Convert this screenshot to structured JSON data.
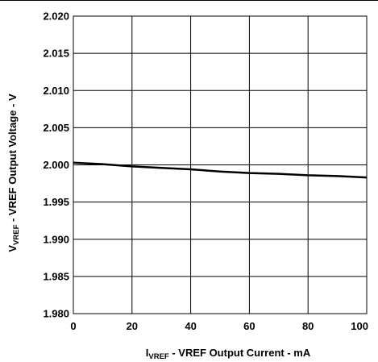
{
  "chart_data": {
    "type": "line",
    "xlabel": {
      "prefix": "I",
      "subscript": "VREF",
      "rest": " - VREF Output Current - mA"
    },
    "ylabel": {
      "prefix": "V",
      "subscript": "VREF",
      "rest": " - VREF Output Voltage - V"
    },
    "xlim": [
      0,
      100
    ],
    "ylim": [
      1.98,
      2.02
    ],
    "xticks": [
      0,
      20,
      40,
      60,
      80,
      100
    ],
    "xtick_labels": [
      "0",
      "20",
      "40",
      "60",
      "80",
      "100"
    ],
    "yticks": [
      1.98,
      1.985,
      1.99,
      1.995,
      2.0,
      2.005,
      2.01,
      2.015,
      2.02
    ],
    "ytick_labels": [
      "1.980",
      "1.985",
      "1.990",
      "1.995",
      "2.000",
      "2.005",
      "2.010",
      "2.015",
      "2.020"
    ],
    "grid": true,
    "series": [
      {
        "color": "#000000",
        "x": [
          0,
          10,
          20,
          30,
          40,
          50,
          60,
          70,
          80,
          90,
          100
        ],
        "y": [
          2.0003,
          2.0001,
          1.9998,
          1.9996,
          1.9994,
          1.9991,
          1.9989,
          1.9988,
          1.9986,
          1.9985,
          1.9983
        ]
      }
    ]
  }
}
